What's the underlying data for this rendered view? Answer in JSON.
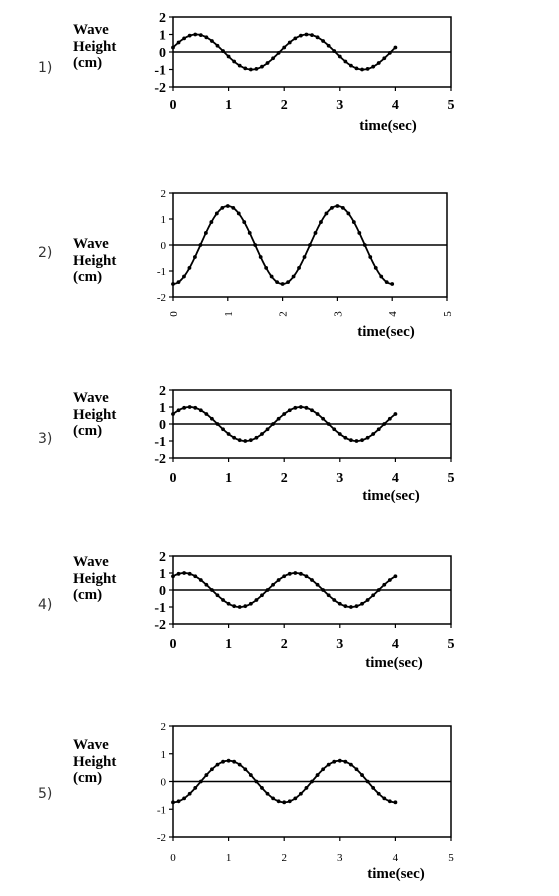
{
  "chart_data": [
    {
      "type": "line",
      "number_label": "1)",
      "ylabel": [
        "Wave",
        "Height",
        "(cm)"
      ],
      "xlabel": "time(sec)",
      "xlim": [
        0,
        5
      ],
      "ylim": [
        -2,
        2
      ],
      "xticks": [
        "0",
        "1",
        "2",
        "3",
        "4",
        "5"
      ],
      "yticks": [
        "2",
        "1",
        "0",
        "-1",
        "-2"
      ],
      "tick_style": "bold",
      "series": [
        {
          "amplitude": 1.0,
          "period": 2,
          "phase_deg": 15,
          "x_range": [
            0,
            4
          ]
        }
      ]
    },
    {
      "type": "line",
      "number_label": "2)",
      "ylabel": [
        "Wave",
        "Height",
        "(cm)"
      ],
      "xlabel": "time(sec)",
      "xlim": [
        0,
        5
      ],
      "ylim": [
        -2,
        2
      ],
      "xticks": [
        "0",
        "1",
        "2",
        "3",
        "4",
        "5"
      ],
      "yticks": [
        "2",
        "1",
        "0",
        "-1",
        "-2"
      ],
      "tick_style": "small-rotated-x",
      "series": [
        {
          "amplitude": 1.5,
          "period": 2,
          "phase_deg": -90,
          "x_range": [
            0,
            4
          ]
        }
      ]
    },
    {
      "type": "line",
      "number_label": "3)",
      "ylabel": [
        "Wave",
        "Height",
        "(cm)"
      ],
      "xlabel": "time(sec)",
      "xlim": [
        0,
        5
      ],
      "ylim": [
        -2,
        2
      ],
      "xticks": [
        "0",
        "1",
        "2",
        "3",
        "4",
        "5"
      ],
      "yticks": [
        "2",
        "1",
        "0",
        "-1",
        "-2"
      ],
      "tick_style": "bold",
      "series": [
        {
          "amplitude": 1.0,
          "period": 2,
          "phase_deg": 36,
          "x_range": [
            0,
            4
          ]
        }
      ]
    },
    {
      "type": "line",
      "number_label": "4)",
      "ylabel": [
        "Wave",
        "Height",
        "(cm)"
      ],
      "xlabel": "time(sec)",
      "xlim": [
        0,
        5
      ],
      "ylim": [
        -2,
        2
      ],
      "xticks": [
        "0",
        "1",
        "2",
        "3",
        "4",
        "5"
      ],
      "yticks": [
        "2",
        "1",
        "0",
        "-1",
        "-2"
      ],
      "tick_style": "bold",
      "series": [
        {
          "amplitude": 1.0,
          "period": 2,
          "phase_deg": 54,
          "x_range": [
            0,
            4
          ]
        }
      ]
    },
    {
      "type": "line",
      "number_label": "5)",
      "ylabel": [
        "Wave",
        "Height",
        "(cm)"
      ],
      "xlabel": "time(sec)",
      "xlim": [
        0,
        5
      ],
      "ylim": [
        -2,
        2
      ],
      "xticks": [
        "0",
        "1",
        "2",
        "3",
        "4",
        "5"
      ],
      "yticks": [
        "2",
        "1",
        "0",
        "-1",
        "-2"
      ],
      "tick_style": "small",
      "series": [
        {
          "amplitude": 0.75,
          "period": 2,
          "phase_deg": -90,
          "x_range": [
            0,
            4
          ]
        }
      ]
    }
  ]
}
